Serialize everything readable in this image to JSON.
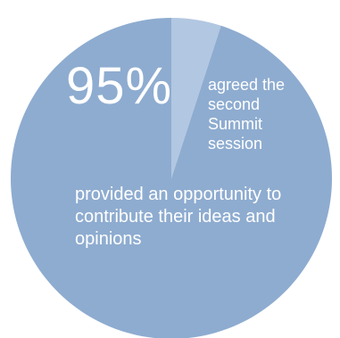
{
  "chart_data": {
    "type": "pie",
    "slices": [
      {
        "value": 95,
        "color": "#8eacd0"
      },
      {
        "value": 5,
        "color": "#b2c7e1"
      }
    ],
    "label_big": "95%",
    "label_side": "agreed the second Summit session",
    "label_main": "provided an opportunity to contribute their ideas and opinions"
  }
}
